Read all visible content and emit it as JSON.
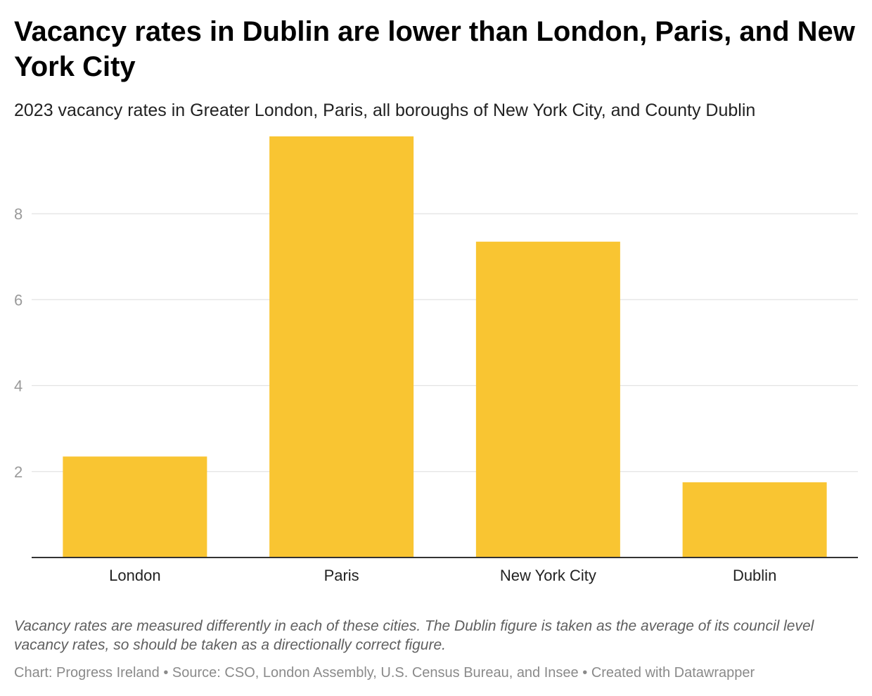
{
  "title": "Vacancy rates in Dublin are lower than London, Paris, and New York City",
  "subtitle": "2023 vacancy rates in Greater London, Paris, all boroughs of New York City, and County Dublin",
  "note": "Vacancy rates are measured differently in each of these cities. The Dublin figure is taken as the average of its council level vacancy rates, so should be taken as a directionally correct figure.",
  "footer": {
    "chart_label": "Chart:",
    "chart_by": "Progress Ireland",
    "separator": "•",
    "source_label": "Source:",
    "sources": "CSO, London Assembly, U.S. Census Bureau, and Insee",
    "credit": "Created with Datawrapper"
  },
  "colors": {
    "bar": "#f9c532",
    "grid": "#e2e2e2",
    "axis": "#333333",
    "tick_label": "#9a9a9a",
    "category_label": "#222222"
  },
  "chart_data": {
    "type": "bar",
    "title": "Vacancy rates in Dublin are lower than London, Paris, and New York City",
    "subtitle": "2023 vacancy rates in Greater London, Paris, all boroughs of New York City, and County Dublin",
    "categories": [
      "London",
      "Paris",
      "New York City",
      "Dublin"
    ],
    "values": [
      2.35,
      9.8,
      7.35,
      1.75
    ],
    "xlabel": "",
    "ylabel": "",
    "yticks": [
      2,
      4,
      6,
      8
    ],
    "ylim": [
      0,
      9.8
    ],
    "grid": true,
    "legend": "none"
  }
}
